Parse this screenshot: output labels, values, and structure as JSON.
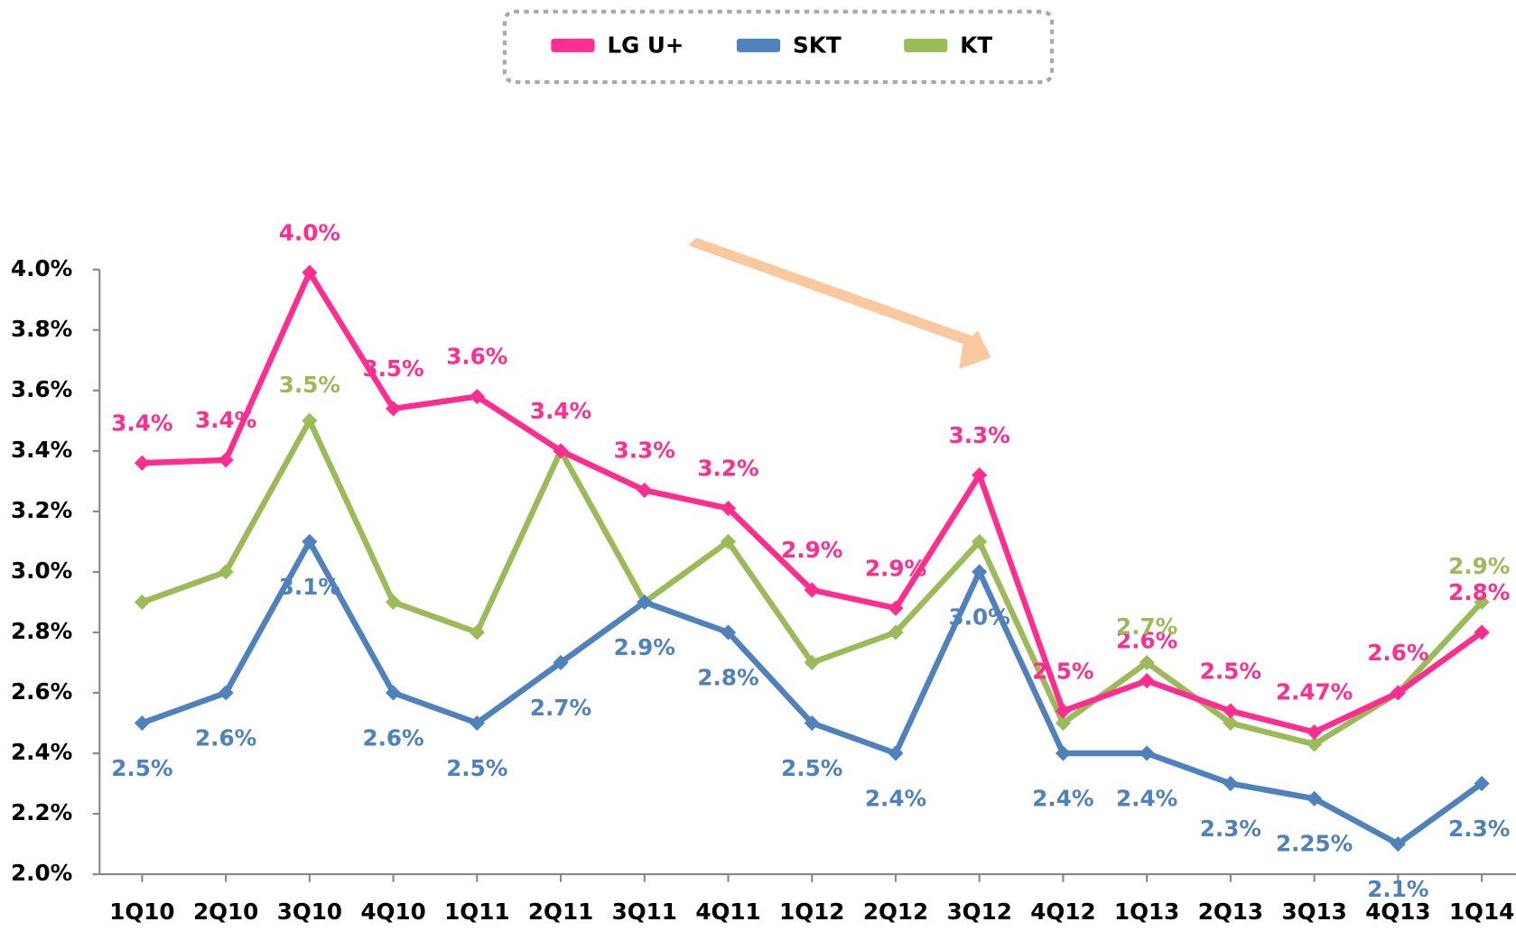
{
  "chart_data": {
    "type": "line",
    "categories": [
      "1Q10",
      "2Q10",
      "3Q10",
      "4Q10",
      "1Q11",
      "2Q11",
      "3Q11",
      "4Q11",
      "1Q12",
      "2Q12",
      "3Q12",
      "4Q12",
      "1Q13",
      "2Q13",
      "3Q13",
      "4Q13",
      "1Q14"
    ],
    "ylim": [
      2.0,
      4.0
    ],
    "yticks": [
      {
        "value": 2.0,
        "label": "2.0%"
      },
      {
        "value": 2.2,
        "label": "2.2%"
      },
      {
        "value": 2.4,
        "label": "2.4%"
      },
      {
        "value": 2.6,
        "label": "2.6%"
      },
      {
        "value": 2.8,
        "label": "2.8%"
      },
      {
        "value": 3.0,
        "label": "3.0%"
      },
      {
        "value": 3.2,
        "label": "3.2%"
      },
      {
        "value": 3.4,
        "label": "3.4%"
      },
      {
        "value": 3.6,
        "label": "3.6%"
      },
      {
        "value": 3.8,
        "label": "3.8%"
      },
      {
        "value": 4.0,
        "label": "4.0%"
      }
    ],
    "grid": false,
    "legend": "top",
    "series": [
      {
        "name": "LG U+",
        "color": "#ff2d8f",
        "values": [
          3.36,
          3.37,
          3.99,
          3.54,
          3.58,
          3.4,
          3.27,
          3.21,
          2.94,
          2.88,
          3.32,
          2.54,
          2.64,
          2.54,
          2.47,
          2.6,
          2.8
        ],
        "value_labels": [
          "3.4%",
          "3.4%",
          "4.0%",
          "3.5%",
          "3.6%",
          "3.4%",
          "3.3%",
          "3.2%",
          "2.9%",
          "2.9%",
          "3.3%",
          "2.5%",
          "2.6%",
          "2.5%",
          "2.47%",
          "2.6%",
          "2.8%"
        ]
      },
      {
        "name": "SKT",
        "color": "#4f81bd",
        "values": [
          2.5,
          2.6,
          3.1,
          2.6,
          2.5,
          2.7,
          2.9,
          2.8,
          2.5,
          2.4,
          3.0,
          2.4,
          2.4,
          2.3,
          2.25,
          2.1,
          2.3
        ],
        "value_labels": [
          "2.5%",
          "2.6%",
          "3.1%",
          "2.6%",
          "2.5%",
          "2.7%",
          "2.9%",
          "2.8%",
          "2.5%",
          "2.4%",
          "3.0%",
          "2.4%",
          "2.4%",
          "2.3%",
          "2.25%",
          "2.1%",
          "2.3%"
        ]
      },
      {
        "name": "KT",
        "color": "#9bbb59",
        "values": [
          2.9,
          3.0,
          3.5,
          2.9,
          2.8,
          3.4,
          2.9,
          3.1,
          2.7,
          2.8,
          3.1,
          2.5,
          2.7,
          2.5,
          2.43,
          2.6,
          2.9
        ],
        "value_labels": [
          null,
          null,
          "3.5%",
          null,
          null,
          null,
          null,
          null,
          null,
          null,
          null,
          null,
          "2.7%",
          null,
          null,
          null,
          "2.9%"
        ]
      }
    ]
  }
}
